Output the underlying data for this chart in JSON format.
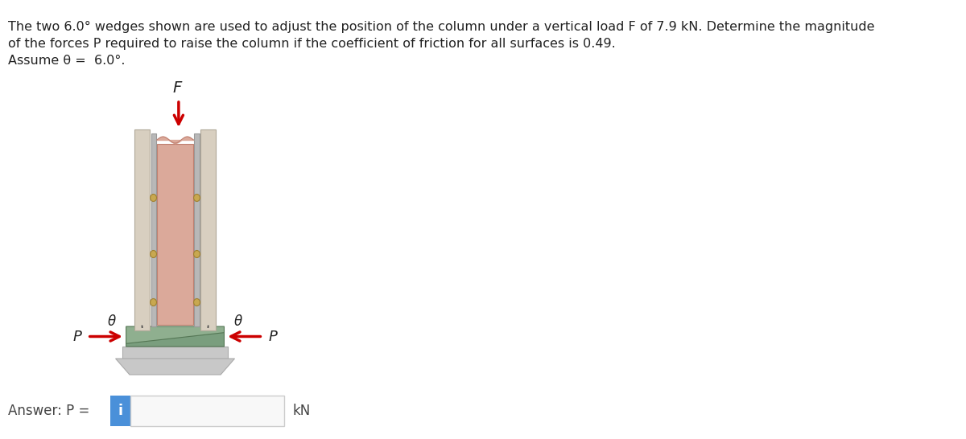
{
  "title_text": "The two 6.0° wedges shown are used to adjust the position of the column under a vertical load F of 7.9 kN. Determine the magnitude\nof the forces P required to raise the column if the coefficient of friction for all surfaces is 0.49.\nAssume θ =  6.0°.",
  "answer_text": "Answer: P = ",
  "kn_text": "kN",
  "F_label": "F",
  "P_label": "P",
  "theta_label": "θ",
  "bg_color": "#ffffff",
  "column_color": "#dba99a",
  "column_frame_color": "#b8b8b8",
  "column_inner_color": "#c8c8c8",
  "wedge_color": "#7a9e7e",
  "wedge_top_color": "#8faf8f",
  "base_color": "#c8c8c8",
  "wall_color": "#d8cfc0",
  "bolt_color": "#c8a850",
  "arrow_color": "#cc0000",
  "input_box_color": "#4a90d9",
  "input_box_text_color": "#ffffff"
}
